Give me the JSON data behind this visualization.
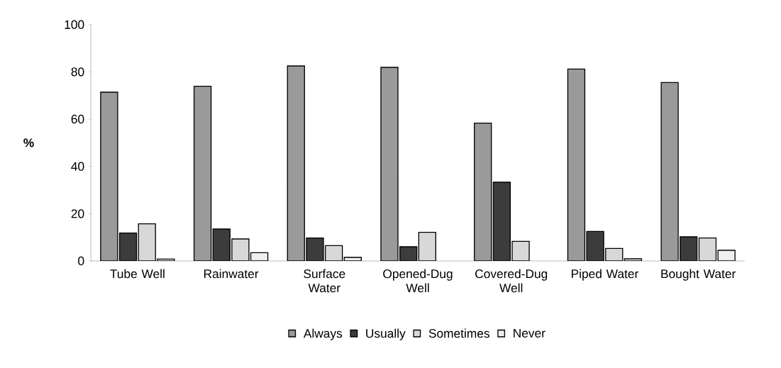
{
  "chart_data": {
    "type": "bar",
    "ylabel": "%",
    "categories": [
      "Tube Well",
      "Rainwater",
      "Surface Water",
      "Opened-Dug Well",
      "Covered-Dug Well",
      "Piped Water",
      "Bought Water"
    ],
    "series": [
      {
        "name": "Always",
        "color": "#9a9a9a",
        "values": [
          71.4,
          73.9,
          82.5,
          81.9,
          58.3,
          81.2,
          75.5
        ]
      },
      {
        "name": "Usually",
        "color": "#3c3c3c",
        "values": [
          11.8,
          13.5,
          9.7,
          6.0,
          33.3,
          12.5,
          10.2
        ]
      },
      {
        "name": "Sometimes",
        "color": "#d8d8d8",
        "values": [
          15.7,
          9.3,
          6.5,
          12.1,
          8.3,
          5.3,
          9.7
        ]
      },
      {
        "name": "Never",
        "color": "#efefef",
        "values": [
          0.8,
          3.5,
          1.5,
          null,
          null,
          0.9,
          4.5
        ]
      }
    ],
    "ylim": [
      0,
      100
    ],
    "yticks": [
      0,
      20,
      40,
      60,
      80,
      100
    ],
    "legend": "bottom",
    "grid": false
  }
}
